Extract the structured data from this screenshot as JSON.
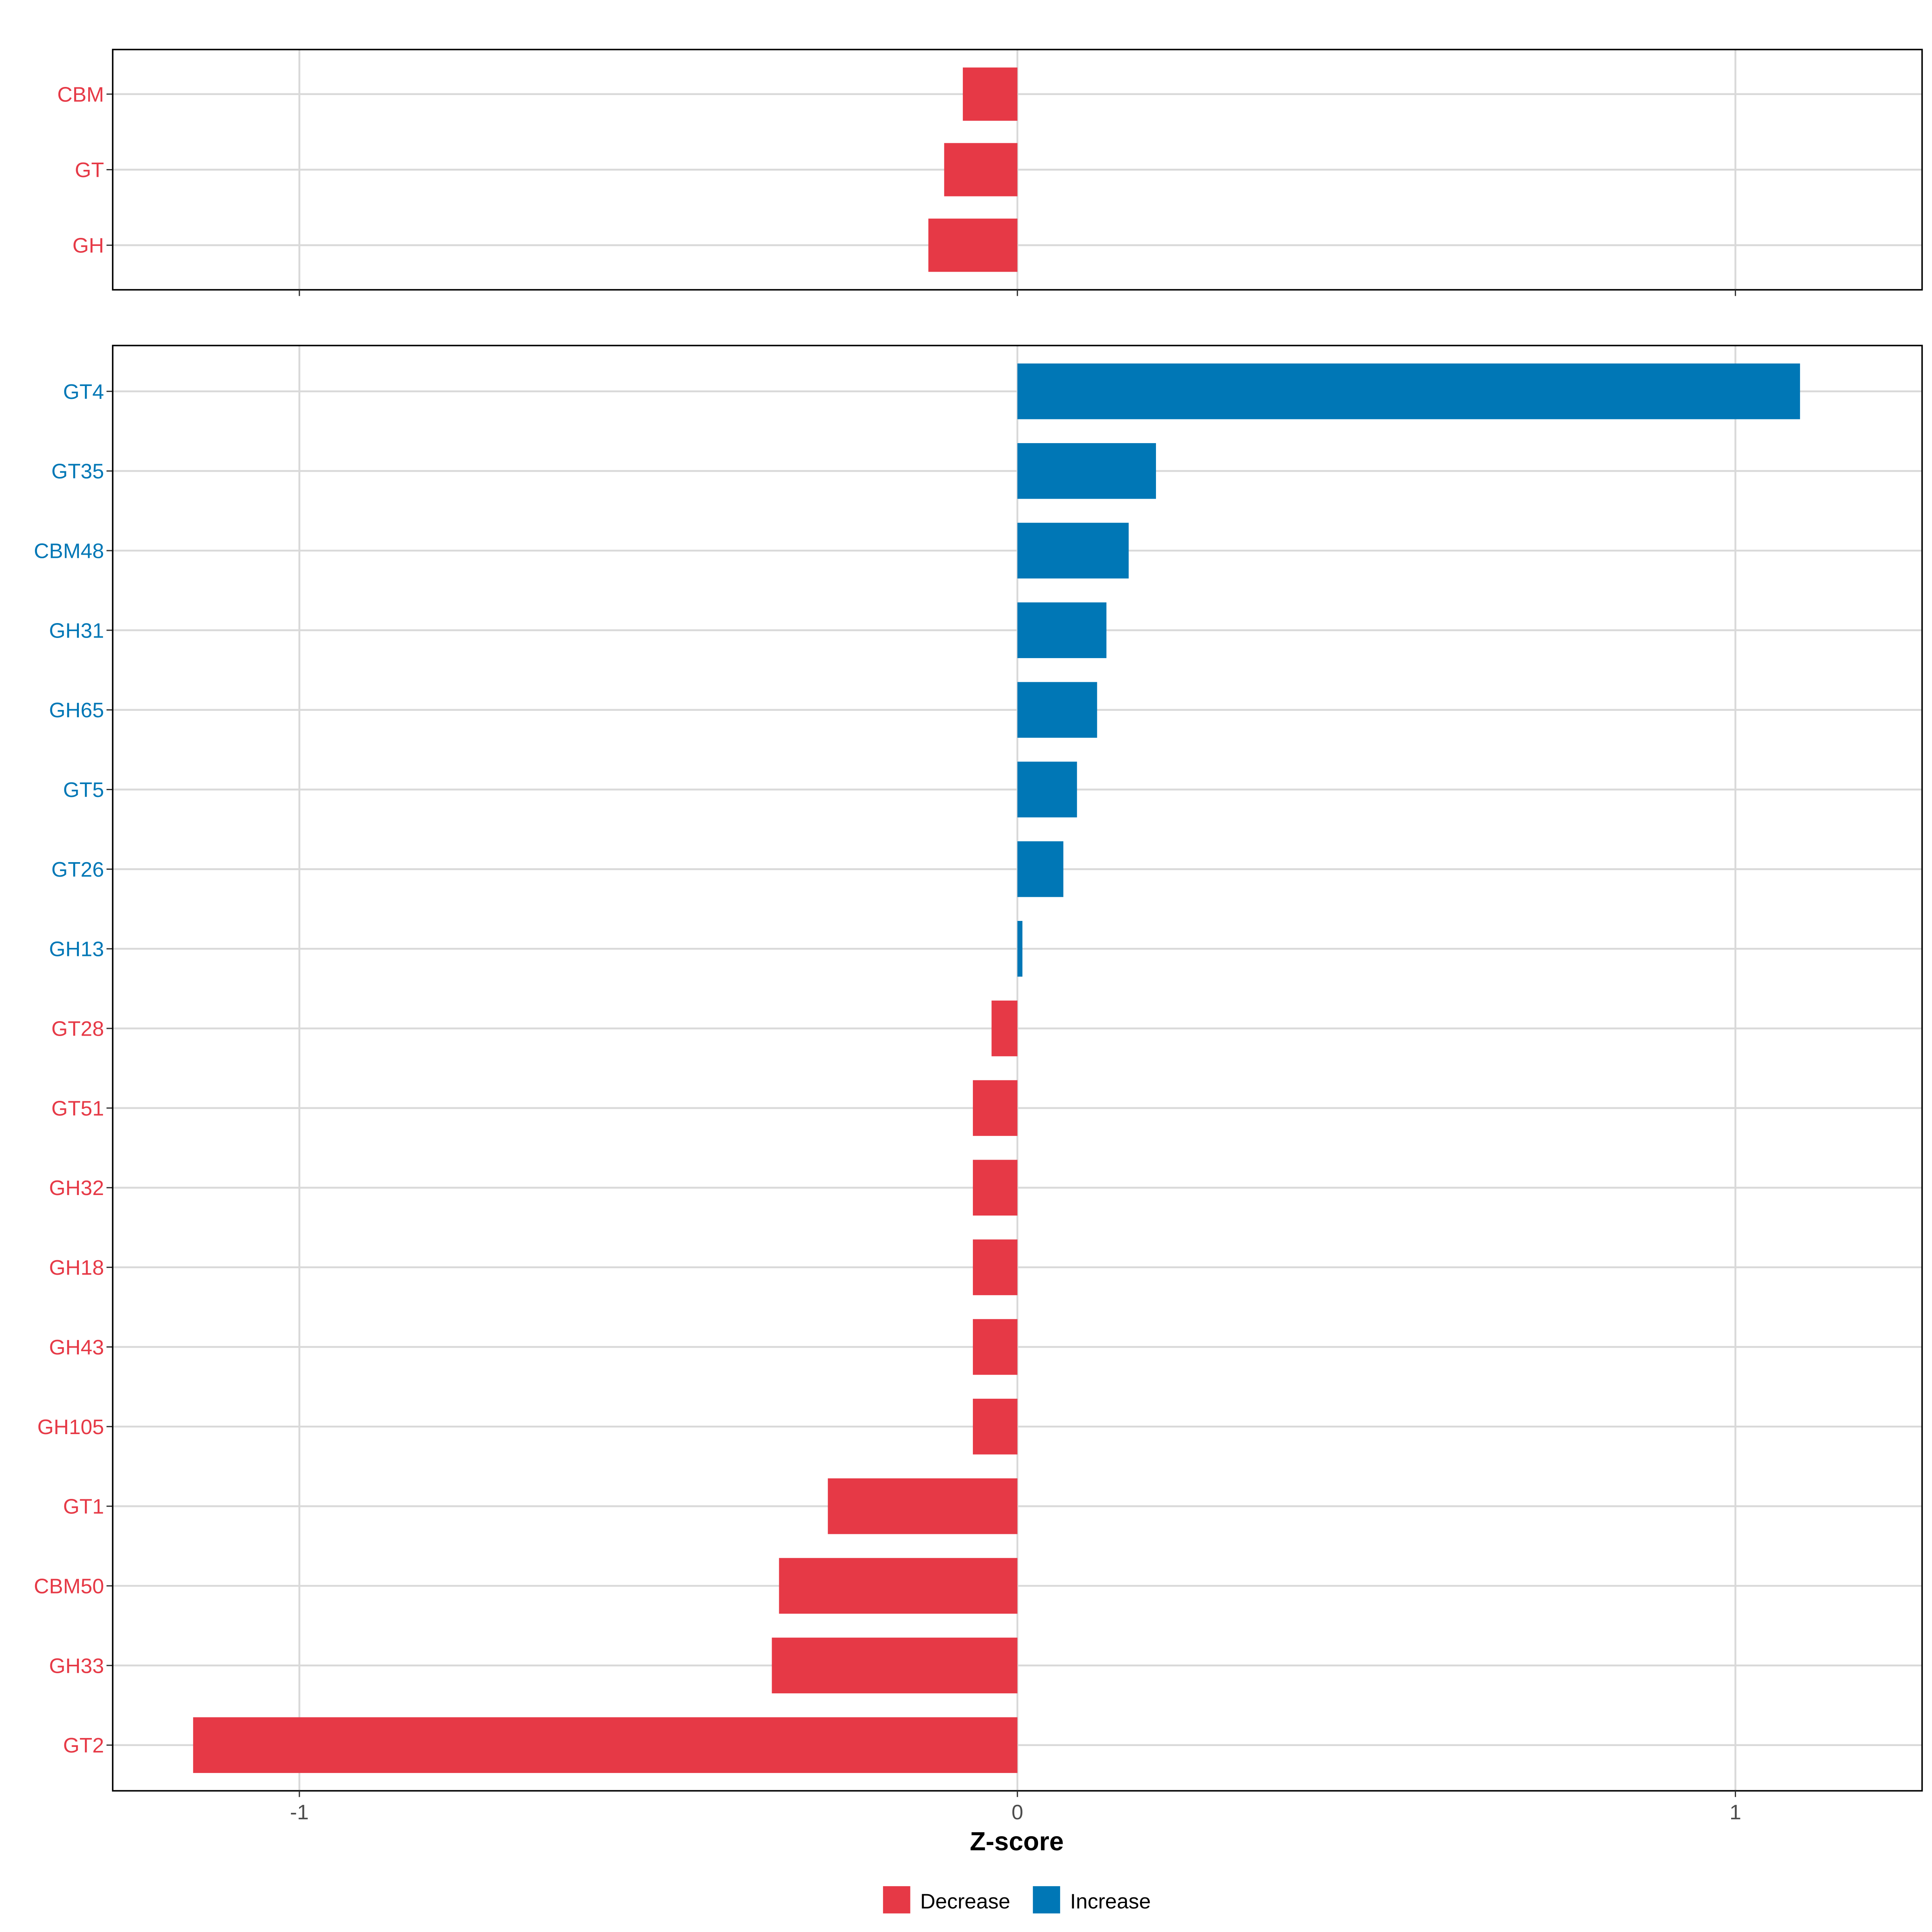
{
  "chart_data": [
    {
      "type": "bar",
      "orientation": "horizontal",
      "panel": "top",
      "categories": [
        "CBM",
        "GT",
        "GH"
      ],
      "values": [
        -0.076,
        -0.102,
        -0.124
      ],
      "xlim": [
        -1.26,
        1.26
      ],
      "grid": true
    },
    {
      "type": "bar",
      "orientation": "horizontal",
      "panel": "bottom",
      "categories": [
        "GT4",
        "GT35",
        "CBM48",
        "GH31",
        "GH65",
        "GT5",
        "GT26",
        "GH13",
        "GT28",
        "GT51",
        "GH32",
        "GH18",
        "GH43",
        "GH105",
        "GT1",
        "CBM50",
        "GH33",
        "GT2"
      ],
      "values": [
        1.09,
        0.193,
        0.155,
        0.124,
        0.111,
        0.083,
        0.064,
        0.007,
        -0.036,
        -0.062,
        -0.062,
        -0.062,
        -0.062,
        -0.062,
        -0.264,
        -0.332,
        -0.342,
        -1.148
      ],
      "xlim": [
        -1.26,
        1.26
      ],
      "grid": true,
      "xticks": [
        -1,
        0,
        1
      ],
      "xtick_labels": [
        "-1",
        "0",
        "1"
      ],
      "xlabel": "Z-score"
    }
  ],
  "legend": {
    "position": "bottom",
    "items": [
      {
        "label": "Decrease",
        "color": "#E63946"
      },
      {
        "label": "Increase",
        "color": "#0077B6"
      }
    ]
  },
  "colors": {
    "decrease": "#E63946",
    "increase": "#0077B6"
  }
}
